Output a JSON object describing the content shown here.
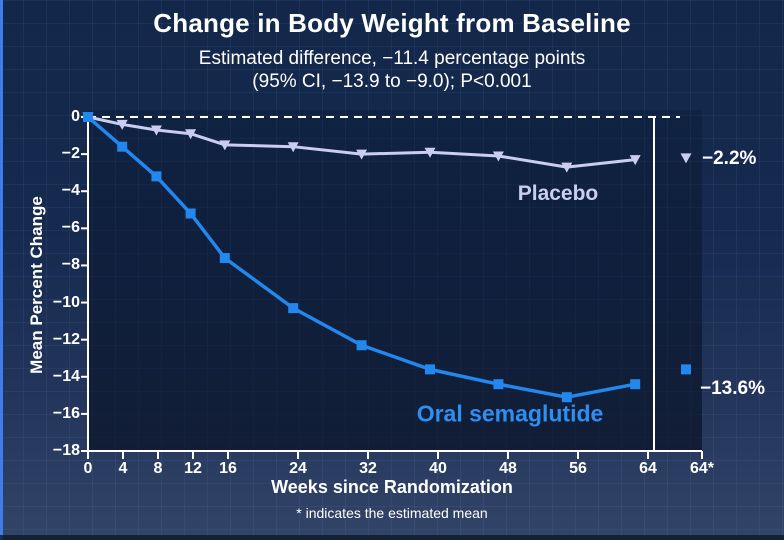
{
  "page": {
    "title": "Change in Body Weight from Baseline",
    "subtitle_line1": "Estimated difference, −11.4 percentage points",
    "subtitle_line2": "(95% CI, −13.9 to −9.0); P<0.001",
    "footnote": "* indicates the estimated mean"
  },
  "colors": {
    "background_top": "#13274a",
    "background_bottom": "#324467",
    "axis": "#ffffff",
    "placebo_line": "#c9cdf1",
    "semaglutide_line": "#2287ee",
    "left_edge_strip": "#3f7ee8",
    "text": "#ffffff"
  },
  "chart_data": {
    "type": "line",
    "title": "Change in Body Weight from Baseline",
    "subtitle": "Estimated difference, −11.4 percentage points (95% CI, −13.9 to −9.0); P<0.001",
    "xlabel": "Weeks since Randomization",
    "ylabel": "Mean Percent Change",
    "x": [
      0,
      4,
      8,
      12,
      16,
      24,
      32,
      40,
      48,
      56,
      64
    ],
    "x_tick_labels": [
      "0",
      "4",
      "8",
      "12",
      "16",
      "24",
      "32",
      "40",
      "48",
      "56",
      "64"
    ],
    "estimated_tick_label": "64*",
    "y_ticks": [
      0,
      -2,
      -4,
      -6,
      -8,
      -10,
      -12,
      -14,
      -16,
      -18
    ],
    "y_tick_labels": [
      "0",
      "−2",
      "−4",
      "−6",
      "−8",
      "−10",
      "−12",
      "−14",
      "−16",
      "−18"
    ],
    "ylim": [
      -18,
      0
    ],
    "xlim": [
      0,
      64
    ],
    "grid": false,
    "zero_line": "dashed",
    "legend_position": "inline-labels",
    "series": [
      {
        "name": "Placebo",
        "marker": "triangle-down",
        "color": "#c9cdf1",
        "values": [
          0,
          -0.4,
          -0.7,
          -0.9,
          -1.5,
          -1.6,
          -2.0,
          -1.9,
          -2.1,
          -2.7,
          -2.3
        ],
        "estimated_mean": -2.2,
        "estimated_label": "−2.2%"
      },
      {
        "name": "Oral semaglutide",
        "marker": "square",
        "color": "#2287ee",
        "values": [
          0,
          -1.6,
          -3.2,
          -5.2,
          -7.6,
          -10.3,
          -12.3,
          -13.6,
          -14.4,
          -15.1,
          -14.4
        ],
        "estimated_mean": -13.6,
        "estimated_label": "−13.6%"
      }
    ]
  }
}
